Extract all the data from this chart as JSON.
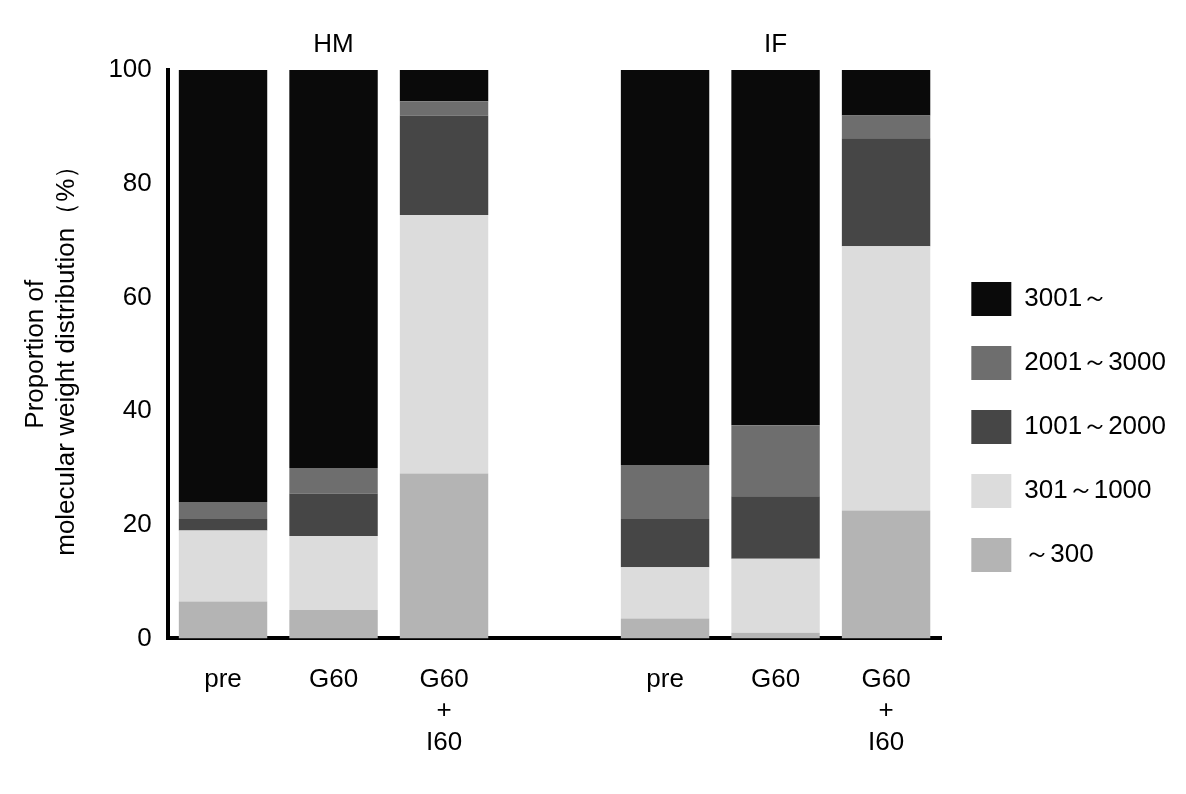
{
  "chart_data": {
    "type": "bar",
    "stacked": true,
    "categories": [
      "pre",
      "G60",
      "G60\n+\nI60",
      null,
      "pre",
      "G60",
      "G60\n+\nI60"
    ],
    "series": [
      {
        "name": "～300",
        "color": "#b4b4b4",
        "values": [
          6.5,
          5,
          29,
          null,
          3.5,
          1,
          22.5
        ]
      },
      {
        "name": "301～1000",
        "color": "#dcdcdc",
        "values": [
          12.5,
          13,
          45.5,
          null,
          9,
          13,
          46.5
        ]
      },
      {
        "name": "1001～2000",
        "color": "#464646",
        "values": [
          2,
          7.5,
          17.5,
          null,
          8.5,
          11,
          19
        ]
      },
      {
        "name": "2001～3000",
        "color": "#6e6e6e",
        "values": [
          3,
          4.5,
          2.5,
          null,
          9.5,
          12.5,
          4
        ]
      },
      {
        "name": "3001～",
        "color": "#0a0a0a",
        "values": [
          76,
          70,
          5.5,
          null,
          69.5,
          62.5,
          8
        ]
      }
    ],
    "ylabel": "Proportion of\nmolecular weight distribution（%）",
    "ylim": [
      0,
      100
    ],
    "yticks": [
      0,
      20,
      40,
      60,
      80,
      100
    ],
    "annotations": [
      "HM",
      "IF"
    ],
    "legend": "right",
    "grid": false
  }
}
